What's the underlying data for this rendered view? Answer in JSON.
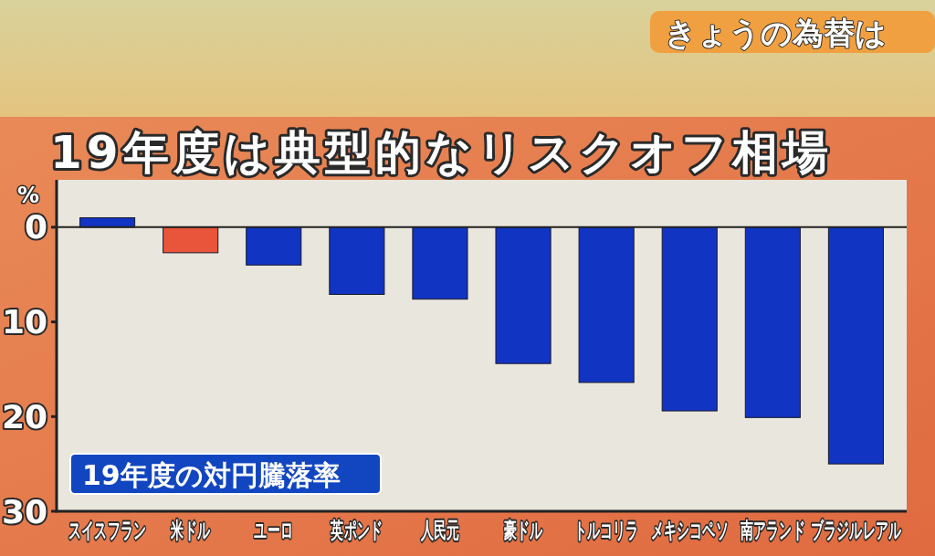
{
  "chart_data": {
    "type": "bar",
    "title": "19年度は典型的なリスクオフ相場",
    "ylabel": "%",
    "categories": [
      "スイスフラン",
      "米ドル",
      "ユーロ",
      "英ポンド",
      "人民元",
      "豪ドル",
      "トルコリラ",
      "メキシコペソ",
      "南アランド",
      "ブラジルレアル"
    ],
    "values": [
      1.0,
      -2.7,
      -4.0,
      -7.1,
      -7.6,
      -14.4,
      -16.4,
      -19.4,
      -20.1,
      -25.0
    ],
    "colors": [
      "#1234c2",
      "#e8553a",
      "#1234c2",
      "#1234c2",
      "#1234c2",
      "#1234c2",
      "#1234c2",
      "#1234c2",
      "#1234c2",
      "#1234c2"
    ],
    "ylim": [
      -30,
      5
    ],
    "yticks": [
      0,
      {
        "value": -10,
        "label": "10"
      },
      {
        "value": -20,
        "label": "20"
      },
      {
        "value": -30,
        "label": "30"
      }
    ],
    "ref_lines": [
      {
        "axis": "y",
        "value": 0,
        "color": "#222222"
      }
    ],
    "annotations": [
      "きょうの為替は",
      "19年度の対円騰落率"
    ]
  }
}
